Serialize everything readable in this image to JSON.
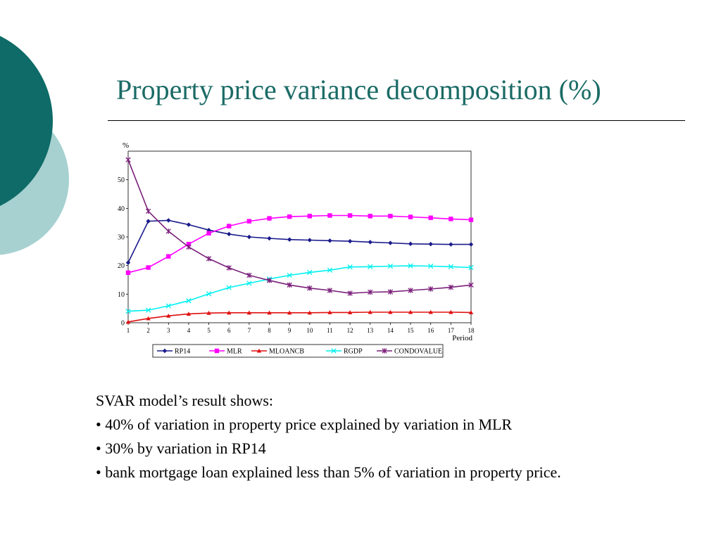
{
  "slide": {
    "title": "Property price variance decomposition (%)",
    "colors": {
      "title": "#1b6b66",
      "circle_dark": "#0e6b67",
      "circle_light": "#a6d1d0"
    }
  },
  "text": {
    "intro": "SVAR model’s result shows:",
    "bullets": [
      "• 40% of variation in property price explained by variation in MLR",
      "• 30% by variation in RP14",
      "• bank mortgage loan explained less than 5% of variation in property price."
    ]
  },
  "chart_data": {
    "type": "line",
    "ylabel": "%",
    "xlabel": "Period",
    "x": [
      1,
      2,
      3,
      4,
      5,
      6,
      7,
      8,
      9,
      10,
      11,
      12,
      13,
      14,
      15,
      16,
      17,
      18
    ],
    "ylim": [
      0,
      60
    ],
    "yticks": [
      0,
      10,
      20,
      30,
      40,
      50
    ],
    "grid": false,
    "legend_position": "bottom",
    "series": [
      {
        "name": "RP14",
        "color": "#1a1a8c",
        "marker": "diamond",
        "values": [
          21,
          35.5,
          35.8,
          34.3,
          32.4,
          31,
          30,
          29.5,
          29.1,
          28.9,
          28.7,
          28.5,
          28.2,
          27.9,
          27.6,
          27.5,
          27.4,
          27.4
        ]
      },
      {
        "name": "MLR",
        "color": "#ff00ff",
        "marker": "square",
        "values": [
          17.5,
          19.3,
          23.2,
          27.5,
          31.3,
          33.8,
          35.5,
          36.5,
          37.1,
          37.3,
          37.5,
          37.5,
          37.3,
          37.3,
          37,
          36.7,
          36.3,
          36
        ]
      },
      {
        "name": "MLOANCB",
        "color": "#e01010",
        "marker": "triangle",
        "values": [
          0.3,
          1.5,
          2.4,
          3.1,
          3.4,
          3.5,
          3.5,
          3.5,
          3.5,
          3.5,
          3.6,
          3.6,
          3.7,
          3.7,
          3.7,
          3.7,
          3.7,
          3.6
        ]
      },
      {
        "name": "RGDP",
        "color": "#00f0f0",
        "marker": "x",
        "values": [
          4,
          4.4,
          5.9,
          7.7,
          10.1,
          12.3,
          13.8,
          15.3,
          16.6,
          17.6,
          18.4,
          19.5,
          19.6,
          19.8,
          19.9,
          19.8,
          19.6,
          19.3
        ]
      },
      {
        "name": "CONDOVALUE",
        "color": "#7a1f7a",
        "marker": "star",
        "values": [
          57,
          39,
          32,
          26.5,
          22.4,
          19.2,
          16.6,
          14.8,
          13.2,
          12.1,
          11.3,
          10.3,
          10.7,
          10.8,
          11.3,
          11.8,
          12.4,
          13.2
        ]
      }
    ]
  }
}
